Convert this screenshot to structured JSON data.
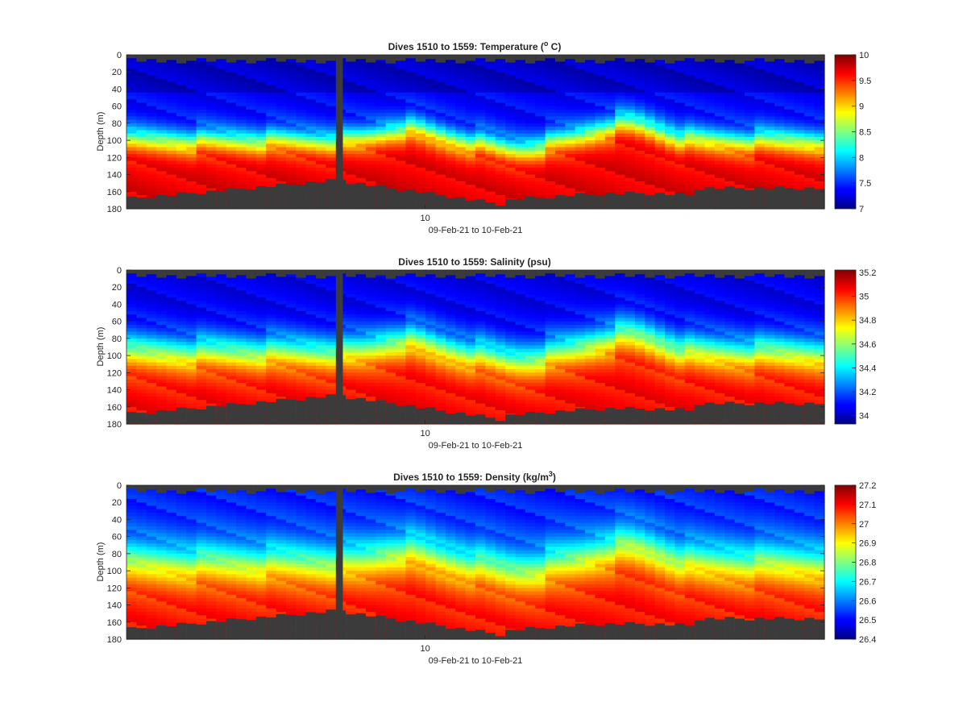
{
  "chart_data": [
    {
      "type": "heatmap",
      "title": "Dives 1510 to 1559: Temperature (",
      "title_sup": "o",
      "title_tail": " C)",
      "ylabel": "Depth (m)",
      "xlabel": "09-Feb-21 to 10-Feb-21",
      "x_ticks": [
        "10"
      ],
      "y_ticks": [
        "0",
        "20",
        "40",
        "60",
        "80",
        "100",
        "120",
        "140",
        "160",
        "180"
      ],
      "ylim": [
        180,
        0
      ],
      "y_reversed": true,
      "colormap": "jet",
      "clim": [
        7,
        10
      ],
      "colorbar_ticks": [
        "10",
        "9.5",
        "9",
        "8.5",
        "8",
        "7.5",
        "7"
      ],
      "colorbar_values": [
        10,
        9.5,
        9,
        8.5,
        8,
        7.5,
        7
      ],
      "fill_color": "#3b3b3b",
      "dives": [
        1510,
        1559
      ]
    },
    {
      "type": "heatmap",
      "title": "Dives 1510 to 1559: Salinity (psu)",
      "ylabel": "Depth (m)",
      "xlabel": "09-Feb-21 to 10-Feb-21",
      "x_ticks": [
        "10"
      ],
      "y_ticks": [
        "0",
        "20",
        "40",
        "60",
        "80",
        "100",
        "120",
        "140",
        "160",
        "180"
      ],
      "ylim": [
        180,
        0
      ],
      "y_reversed": true,
      "colormap": "jet",
      "clim": [
        33.93,
        35.22
      ],
      "colorbar_ticks": [
        "35.2",
        "35",
        "34.8",
        "34.6",
        "34.4",
        "34.2",
        "34"
      ],
      "colorbar_values": [
        35.2,
        35.0,
        34.8,
        34.6,
        34.4,
        34.2,
        34.0
      ],
      "fill_color": "#3b3b3b",
      "dives": [
        1510,
        1559
      ]
    },
    {
      "type": "heatmap",
      "title": "Dives 1510 to 1559: Density (kg/m",
      "title_sup": "3",
      "title_tail": ")",
      "ylabel": "Depth (m)",
      "xlabel": "09-Feb-21 to 10-Feb-21",
      "x_ticks": [
        "10"
      ],
      "y_ticks": [
        "0",
        "20",
        "40",
        "60",
        "80",
        "100",
        "120",
        "140",
        "160",
        "180"
      ],
      "ylim": [
        180,
        0
      ],
      "y_reversed": true,
      "colormap": "jet",
      "clim": [
        26.4,
        27.2
      ],
      "colorbar_ticks": [
        "27.2",
        "27.1",
        "27",
        "26.9",
        "26.8",
        "26.7",
        "26.6",
        "26.5",
        "26.4"
      ],
      "colorbar_values": [
        27.2,
        27.1,
        27.0,
        26.9,
        26.8,
        26.7,
        26.6,
        26.5,
        26.4
      ],
      "fill_color": "#3b3b3b",
      "dives": [
        1510,
        1559
      ]
    }
  ]
}
